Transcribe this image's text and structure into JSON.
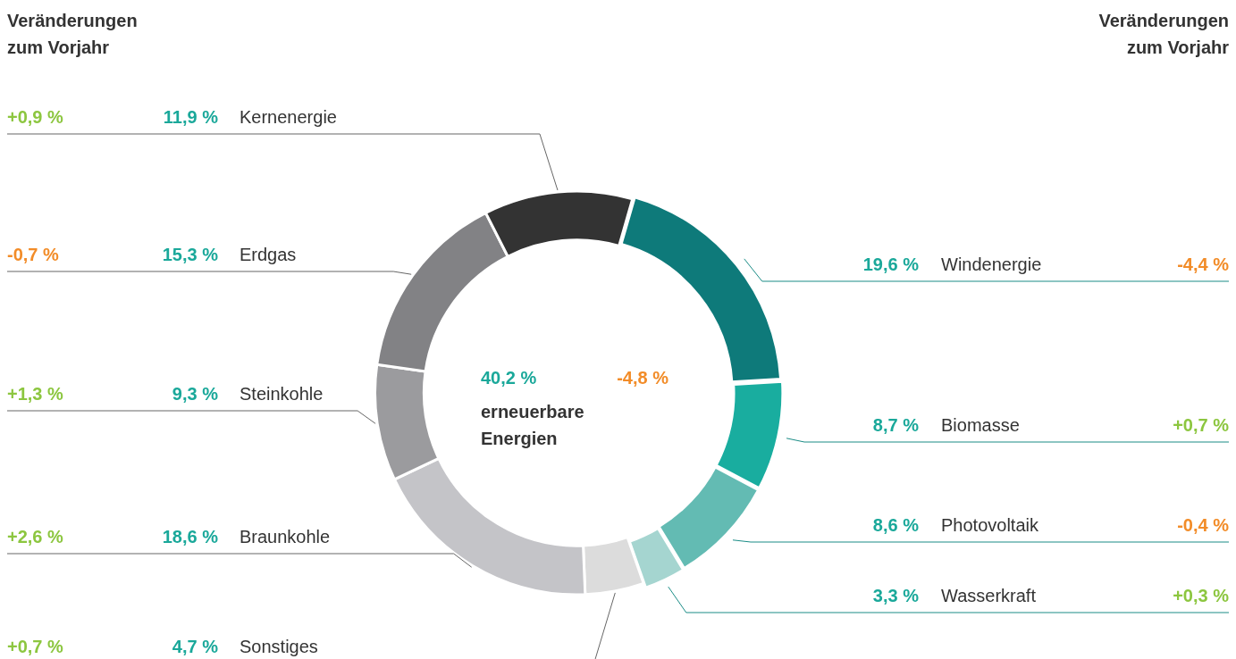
{
  "chart_data": {
    "type": "donut",
    "title": "Veränderungen zum Vorjahr",
    "categories": [
      "Windenergie",
      "Biomasse",
      "Photovoltaik",
      "Wasserkraft",
      "Sonstiges",
      "Braunkohle",
      "Steinkohle",
      "Erdgas",
      "Kernenergie"
    ],
    "values": [
      19.6,
      8.7,
      8.6,
      3.3,
      4.7,
      18.6,
      9.3,
      15.3,
      11.9
    ],
    "colors": [
      "#0e7a7a",
      "#19ad9f",
      "#63bbb3",
      "#a5d5d0",
      "#dcdcdc",
      "#c4c4c8",
      "#9b9b9e",
      "#828285",
      "#333333"
    ],
    "value_labels": [
      "19,6 %",
      "8,7 %",
      "8,6 %",
      "3,3 %",
      "4,7 %",
      "18,6 %",
      "9,3 %",
      "15,3 %",
      "11,9 %"
    ],
    "annotations": [
      "Veränderungen zum Vorjahr",
      "40,2 %",
      "-4,8 %",
      "erneuerbare Energien",
      {
        "text": "-4,4 %",
        "x": "Windenergie"
      },
      {
        "text": "+0,7 %",
        "x": "Biomasse"
      },
      {
        "text": "-0,4 %",
        "x": "Photovoltaik"
      },
      {
        "text": "+0,3 %",
        "x": "Wasserkraft"
      },
      {
        "text": "+0,7 %",
        "x": "Sonstiges"
      },
      {
        "text": "+2,6 %",
        "x": "Braunkohle"
      },
      {
        "text": "+1,3 %",
        "x": "Steinkohle"
      },
      {
        "text": "-0,7 %",
        "x": "Erdgas"
      },
      {
        "text": "+0,9 %",
        "x": "Kernenergie"
      }
    ],
    "legend": false
  }
}
